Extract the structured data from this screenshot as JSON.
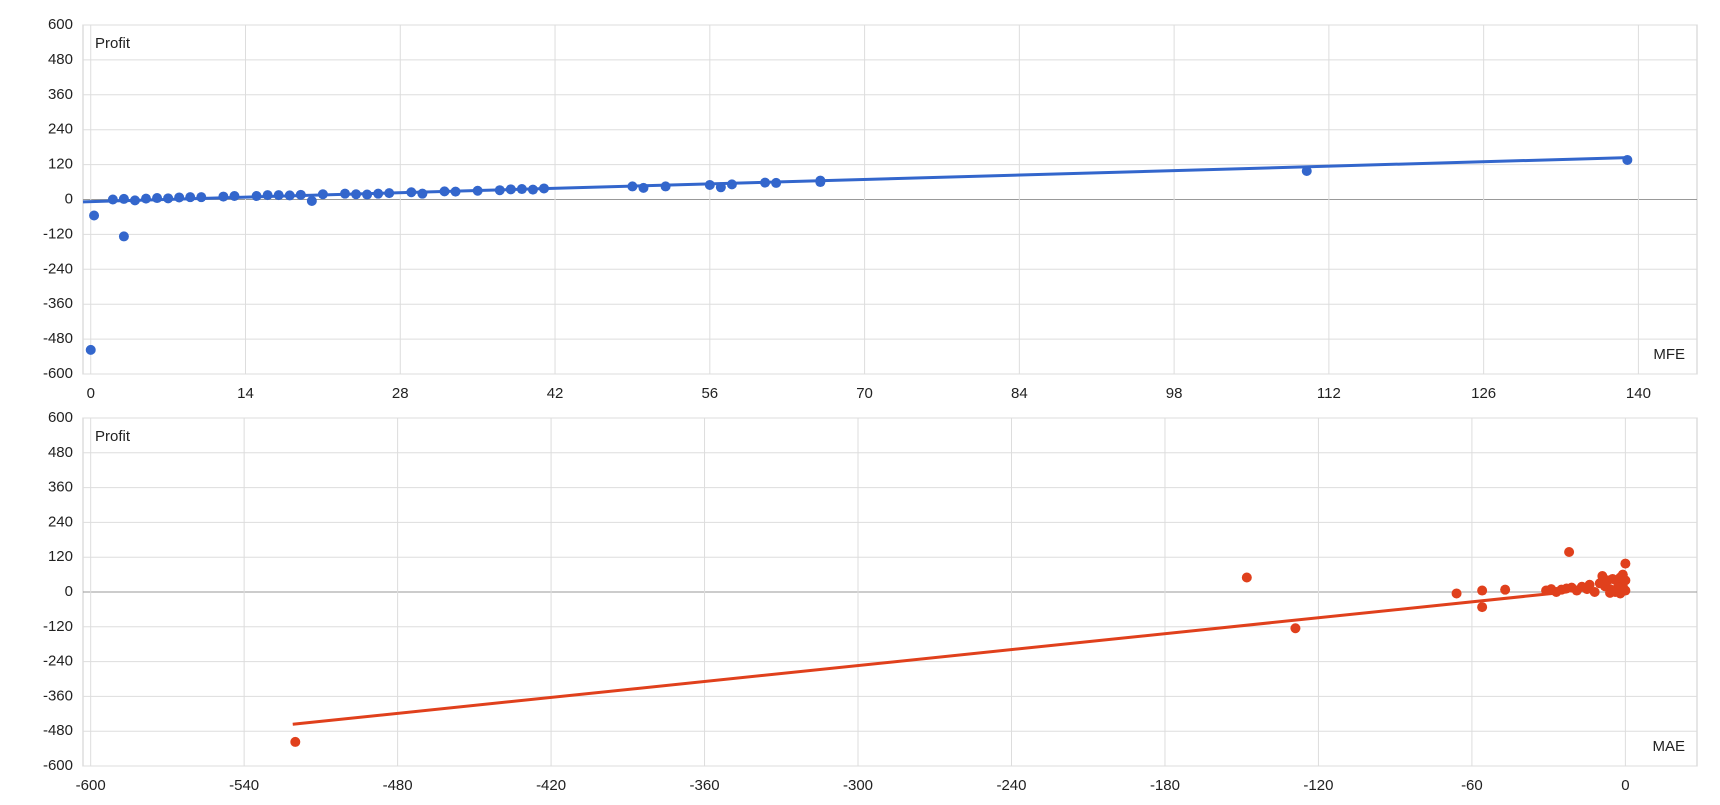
{
  "chart_data": [
    {
      "type": "scatter",
      "x_label": "MFE",
      "y_label": "Profit",
      "color": "#3366cc",
      "grid": true,
      "xlim": [
        -0.7,
        145.3
      ],
      "xticks": [
        0,
        14,
        28,
        42,
        56,
        70,
        84,
        98,
        112,
        126,
        140
      ],
      "ylim": [
        -600,
        600
      ],
      "yticks": [
        -600,
        -480,
        -360,
        -240,
        -120,
        0,
        120,
        240,
        360,
        480,
        600
      ],
      "x": [
        0,
        0.3,
        3,
        2,
        3,
        4,
        5,
        6,
        7,
        8,
        9,
        10,
        12,
        13,
        15,
        16,
        17,
        18,
        19,
        20,
        21,
        23,
        24,
        25,
        26,
        27,
        29,
        30,
        32,
        33,
        35,
        37,
        38,
        39,
        40,
        41,
        49,
        50,
        52,
        56,
        57,
        58,
        61,
        62,
        66,
        66,
        110,
        139
      ],
      "y": [
        -517,
        -55,
        -127,
        0,
        2,
        -3,
        3,
        5,
        4,
        7,
        8,
        8,
        10,
        12,
        12,
        15,
        15,
        14,
        16,
        -5,
        18,
        20,
        18,
        17,
        20,
        22,
        25,
        20,
        28,
        27,
        30,
        32,
        35,
        36,
        34,
        38,
        45,
        40,
        45,
        50,
        42,
        52,
        58,
        57,
        60,
        65,
        98,
        136
      ],
      "trendline": {
        "x": [
          -0.7,
          139
        ],
        "y": [
          -8,
          144
        ]
      }
    },
    {
      "type": "scatter",
      "x_label": "MAE",
      "y_label": "Profit",
      "color": "#e0401c",
      "grid": true,
      "xlim": [
        -603,
        28
      ],
      "xticks": [
        -600,
        -540,
        -480,
        -420,
        -360,
        -300,
        -240,
        -180,
        -120,
        -60,
        0
      ],
      "ylim": [
        -600,
        600
      ],
      "yticks": [
        -600,
        -480,
        -360,
        -240,
        -120,
        0,
        120,
        240,
        360,
        480,
        600
      ],
      "x": [
        -520,
        -148,
        -129,
        -66,
        -56,
        -56,
        -47,
        -22,
        -31,
        -29,
        -27,
        -25,
        -23,
        -21,
        -19,
        -17,
        -15,
        -14,
        -12,
        -10,
        -9,
        -8,
        -7,
        -6,
        -5,
        -4,
        -3,
        -2,
        -2,
        -1,
        -1,
        0,
        0,
        0,
        -3,
        -6
      ],
      "y": [
        -517,
        50,
        -125,
        -5,
        5,
        -52,
        8,
        138,
        5,
        10,
        0,
        8,
        12,
        15,
        5,
        18,
        10,
        25,
        0,
        30,
        55,
        20,
        40,
        10,
        45,
        0,
        35,
        50,
        -5,
        60,
        20,
        98,
        40,
        5,
        15,
        -3
      ],
      "trendline": {
        "x": [
          -521,
          -23
        ],
        "y": [
          -456,
          0
        ]
      }
    }
  ]
}
